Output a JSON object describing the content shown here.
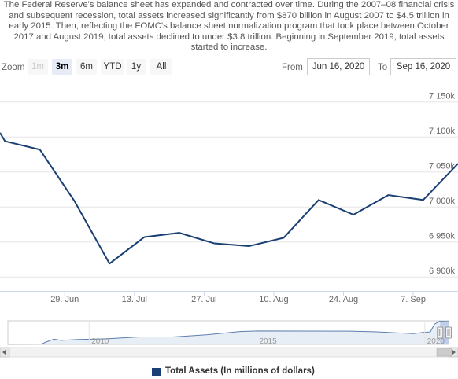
{
  "description": "The Federal Reserve's balance sheet has expanded and contracted over time. During the 2007–08 financial crisis and subsequent recession, total assets increased significantly from $870 billion in August 2007 to $4.5 trillion in early 2015. Then, reflecting the FOMC's balance sheet normalization program that took place between October 2017 and August 2019, total assets declined to under $3.8 trillion. Beginning in September 2019, total assets started to increase.",
  "zoom": {
    "label": "Zoom",
    "buttons": [
      {
        "label": "1m",
        "state": "disabled"
      },
      {
        "label": "3m",
        "state": "active"
      },
      {
        "label": "6m",
        "state": "normal"
      },
      {
        "label": "YTD",
        "state": "normal"
      },
      {
        "label": "1y",
        "state": "normal"
      },
      {
        "label": "All",
        "state": "normal"
      }
    ]
  },
  "range": {
    "from_label": "From",
    "from_value": "Jun 16, 2020",
    "to_label": "To",
    "to_value": "Sep 16, 2020"
  },
  "colors": {
    "series": "#1a3f73",
    "navigator_series": "#5b7fae",
    "navigator_fill": "#e8eef6",
    "navigator_mask": "rgba(102,133,194,0.3)",
    "grid": "#e6e6e6",
    "axis": "#ccd6eb"
  },
  "chart_data": {
    "type": "line",
    "title": "",
    "xlabel": "",
    "ylabel": "",
    "x_axis": {
      "type": "datetime",
      "range": [
        "2020-06-16",
        "2020-09-16"
      ],
      "ticks": [
        {
          "date": "2020-06-29",
          "label": "29. Jun"
        },
        {
          "date": "2020-07-13",
          "label": "13. Jul"
        },
        {
          "date": "2020-07-27",
          "label": "27. Jul"
        },
        {
          "date": "2020-08-10",
          "label": "10. Aug"
        },
        {
          "date": "2020-08-24",
          "label": "24. Aug"
        },
        {
          "date": "2020-09-07",
          "label": "7. Sep"
        }
      ]
    },
    "y_axis": {
      "range": [
        6880000,
        7180000
      ],
      "ticks": [
        {
          "value": 6900000,
          "label": "6 900k"
        },
        {
          "value": 6950000,
          "label": "6 950k"
        },
        {
          "value": 7000000,
          "label": "7 000k"
        },
        {
          "value": 7050000,
          "label": "7 050k"
        },
        {
          "value": 7100000,
          "label": "7 100k"
        },
        {
          "value": 7150000,
          "label": "7 150k"
        }
      ],
      "gridlines": true,
      "position": "right"
    },
    "legend_position": "bottom-center",
    "series": [
      {
        "name": "Total Assets (In millions of dollars)",
        "points": [
          [
            "2020-06-16",
            7106000
          ],
          [
            "2020-06-17",
            7094000
          ],
          [
            "2020-06-24",
            7082000
          ],
          [
            "2020-07-01",
            7008000
          ],
          [
            "2020-07-08",
            6919000
          ],
          [
            "2020-07-15",
            6957000
          ],
          [
            "2020-07-22",
            6963000
          ],
          [
            "2020-07-29",
            6948000
          ],
          [
            "2020-08-05",
            6944000
          ],
          [
            "2020-08-12",
            6956000
          ],
          [
            "2020-08-19",
            7010000
          ],
          [
            "2020-08-26",
            6989000
          ],
          [
            "2020-09-02",
            7017000
          ],
          [
            "2020-09-09",
            7010000
          ],
          [
            "2020-09-16",
            7062000
          ]
        ]
      }
    ],
    "navigator": {
      "x_range": [
        "2007-08-01",
        "2020-09-16"
      ],
      "y_range": [
        800000,
        7300000
      ],
      "labels": [
        {
          "date": "2010-01-01",
          "label": "2010"
        },
        {
          "date": "2015-01-01",
          "label": "2015"
        },
        {
          "date": "2020-01-01",
          "label": "2020"
        }
      ],
      "series": [
        [
          "2007-08-01",
          870000
        ],
        [
          "2008-08-01",
          900000
        ],
        [
          "2008-09-25",
          1500000
        ],
        [
          "2008-12-15",
          2250000
        ],
        [
          "2009-03-01",
          1900000
        ],
        [
          "2009-09-01",
          2150000
        ],
        [
          "2010-06-01",
          2300000
        ],
        [
          "2011-06-30",
          2850000
        ],
        [
          "2012-06-30",
          2850000
        ],
        [
          "2013-06-30",
          3450000
        ],
        [
          "2014-06-30",
          4350000
        ],
        [
          "2015-01-15",
          4500000
        ],
        [
          "2017-10-01",
          4450000
        ],
        [
          "2018-06-30",
          4300000
        ],
        [
          "2019-08-30",
          3780000
        ],
        [
          "2019-12-31",
          4170000
        ],
        [
          "2020-03-01",
          4240000
        ],
        [
          "2020-04-15",
          6360000
        ],
        [
          "2020-06-10",
          7160000
        ],
        [
          "2020-09-16",
          7060000
        ]
      ]
    }
  }
}
